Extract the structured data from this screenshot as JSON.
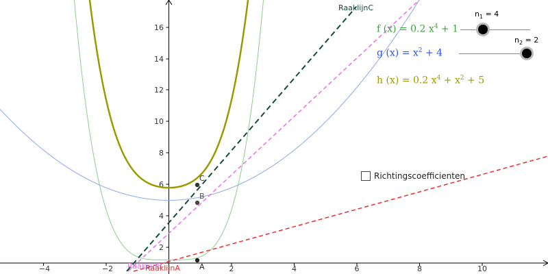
{
  "colors": {
    "f": "#3aa63a",
    "g": "#2e55e0",
    "h": "#9a9a00",
    "f_curve": "#8ccf8c",
    "g_curve": "#8fa7e6",
    "h_curve": "#9a9a00",
    "tangentA": "#e83030",
    "tangentB": "#e870e8",
    "tangentC": "#144a3c"
  },
  "axes": {
    "x_ticks": [
      "−4",
      "−2",
      "2",
      "4",
      "6",
      "8",
      "10"
    ],
    "y_ticks": [
      "2",
      "4",
      "6",
      "8",
      "10",
      "12",
      "14",
      "16"
    ]
  },
  "functions": {
    "f": {
      "name": "f",
      "var": "(x)",
      "eq": "=",
      "coef": "0.2 x",
      "exp": "4",
      "tail": " + 1"
    },
    "g": {
      "name": "g",
      "var": "(x)",
      "eq": "=",
      "base": "x",
      "exp": "2",
      "tail": " + 4"
    },
    "h": {
      "name": "h",
      "var": "(x)",
      "eq": "=",
      "coef": "0.2 x",
      "exp4": "4",
      "mid": " + x",
      "exp2": "2",
      "tail": " + 5"
    }
  },
  "sliders": {
    "n1": {
      "name": "n",
      "sub": "1",
      "text": " = 4",
      "value": 4
    },
    "n2": {
      "name": "n",
      "sub": "2",
      "text": " = 2",
      "value": 2
    }
  },
  "points": {
    "A": "A",
    "B": "B",
    "C": "C"
  },
  "tangent_labels": {
    "A": "RaaklijnA",
    "B": "RaaklijnB",
    "C": "RaaklijnC"
  },
  "checkbox": {
    "label": "Richtingscoefficienten",
    "checked": false
  }
}
